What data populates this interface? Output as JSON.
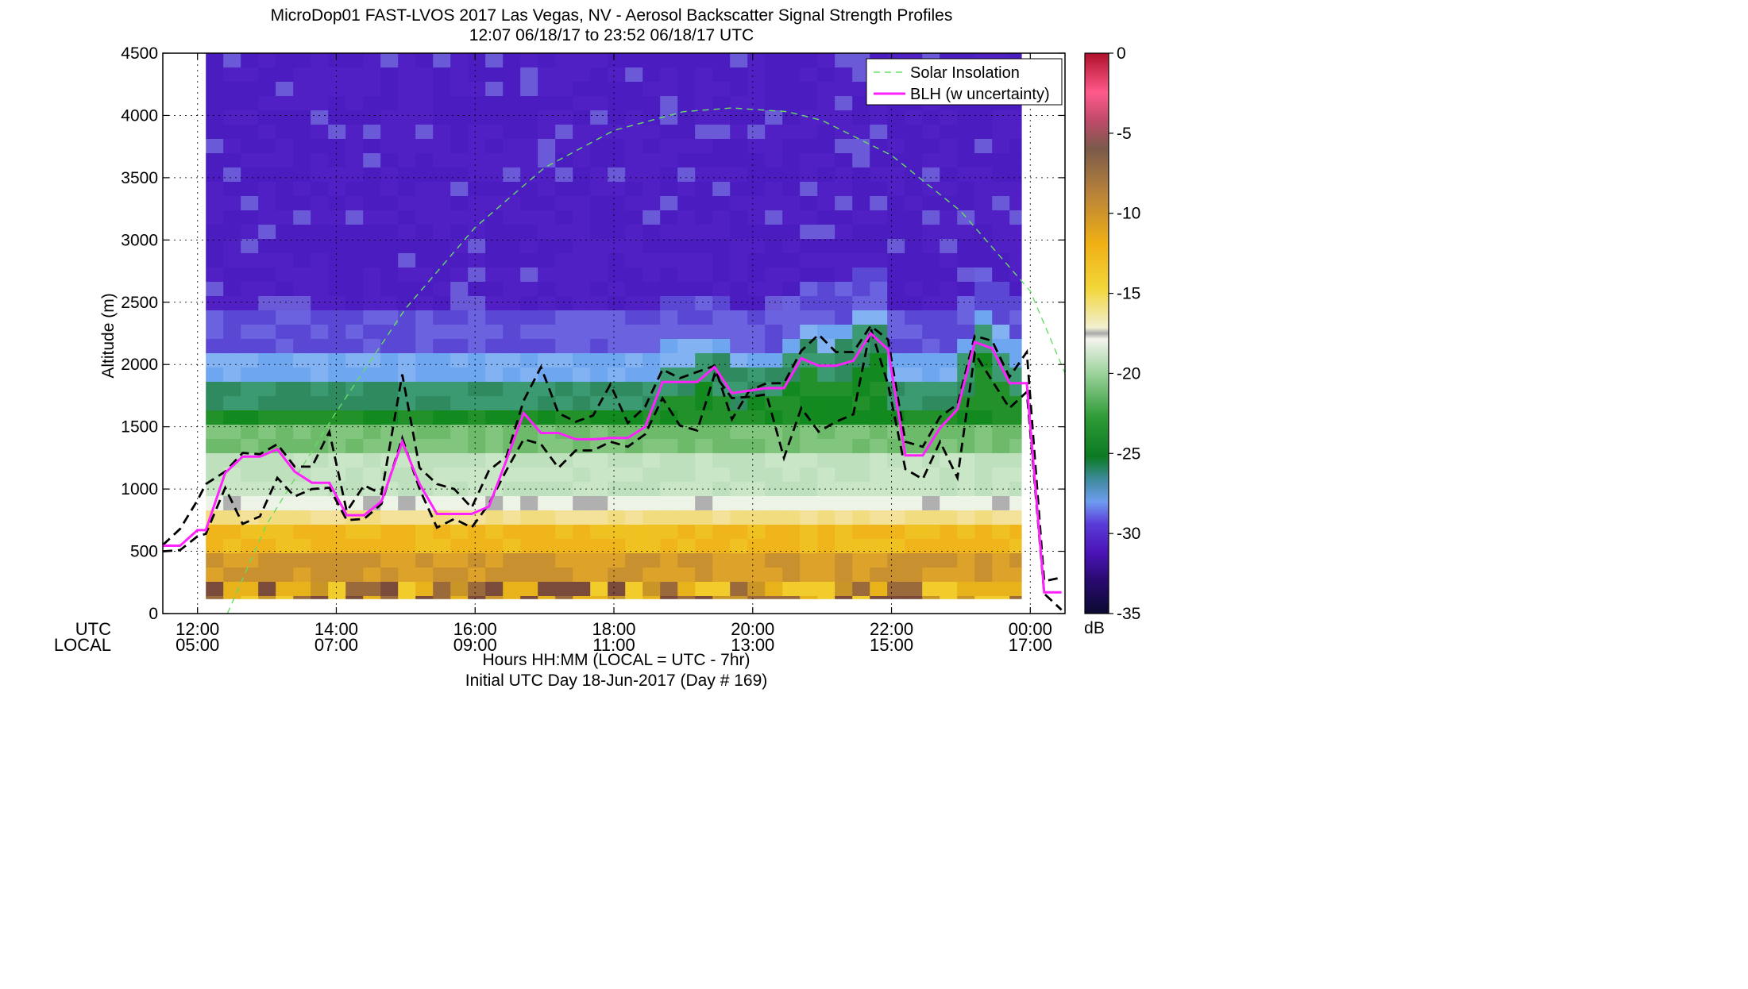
{
  "title": "MicroDop01 FAST-LVOS 2017 Las Vegas, NV - Aerosol Backscatter Signal Strength Profiles",
  "subtitle": "12:07 06/18/17 to 23:52 06/18/17  UTC",
  "ylabel": "Altitude (m)",
  "xlabel": "Hours HH:MM  (LOCAL = UTC - 7hr)",
  "footer": "Initial UTC Day 18-Jun-2017 (Day # 169)",
  "utc_label": "UTC",
  "local_label": "LOCAL",
  "colorbar_unit": "dB",
  "legend": {
    "solar_label": "Solar Insolation",
    "blh_label": "BLH (w uncertainty)"
  },
  "colors": {
    "solar": "#66dd66",
    "blh": "#ff22ff",
    "uncertainty": "#000000"
  },
  "chart_data": {
    "type": "heatmap",
    "title": "MicroDop01 FAST-LVOS 2017 Las Vegas, NV - Aerosol Backscatter Signal Strength Profiles",
    "subtitle": "12:07 06/18/17 to 23:52 06/18/17  UTC",
    "xlabel": "Hours HH:MM  (LOCAL = UTC - 7hr)",
    "ylabel": "Altitude (m)",
    "xlim": [
      11.5,
      24.5
    ],
    "ylim": [
      0,
      4500
    ],
    "yticks": [
      0,
      500,
      1000,
      1500,
      2000,
      2500,
      3000,
      3500,
      4000,
      4500
    ],
    "xticks": [
      {
        "utc": "12:00",
        "local": "05:00",
        "hour": 12
      },
      {
        "utc": "14:00",
        "local": "07:00",
        "hour": 14
      },
      {
        "utc": "16:00",
        "local": "09:00",
        "hour": 16
      },
      {
        "utc": "18:00",
        "local": "11:00",
        "hour": 18
      },
      {
        "utc": "20:00",
        "local": "13:00",
        "hour": 20
      },
      {
        "utc": "22:00",
        "local": "15:00",
        "hour": 22
      },
      {
        "utc": "00:00",
        "local": "17:00",
        "hour": 24
      }
    ],
    "colorbar": {
      "range": [
        -35,
        0
      ],
      "ticks": [
        0,
        -5,
        -10,
        -15,
        -20,
        -25,
        -30,
        -35
      ],
      "label": "dB"
    },
    "data_extent": {
      "x": [
        12.12,
        23.87
      ],
      "y": [
        120,
        4500
      ]
    },
    "series": [
      {
        "name": "Solar Insolation",
        "style": "dashed",
        "x": [
          12.43,
          13.0,
          14.0,
          15.0,
          16.0,
          17.0,
          18.0,
          19.0,
          19.7,
          20.5,
          21.0,
          22.0,
          23.0,
          24.0,
          24.5
        ],
        "y": [
          0,
          720,
          1620,
          2450,
          3100,
          3580,
          3880,
          4030,
          4060,
          4030,
          3960,
          3680,
          3230,
          2590,
          1930
        ]
      },
      {
        "name": "BLH (w uncertainty)",
        "x": [
          11.5,
          11.75,
          12.0,
          12.12,
          12.4,
          12.65,
          12.9,
          13.15,
          13.4,
          13.65,
          13.9,
          14.15,
          14.4,
          14.65,
          14.95,
          15.2,
          15.45,
          15.7,
          15.95,
          16.2,
          16.45,
          16.7,
          16.95,
          17.2,
          17.45,
          17.7,
          17.95,
          18.2,
          18.45,
          18.7,
          18.95,
          19.2,
          19.45,
          19.7,
          19.95,
          20.2,
          20.45,
          20.7,
          20.95,
          21.2,
          21.45,
          21.7,
          21.95,
          22.2,
          22.45,
          22.7,
          22.95,
          23.2,
          23.45,
          23.7,
          23.95,
          24.2,
          24.45
        ],
        "y": [
          545,
          545,
          670,
          670,
          1130,
          1260,
          1260,
          1320,
          1140,
          1050,
          1050,
          790,
          790,
          900,
          1380,
          1040,
          800,
          800,
          800,
          860,
          1230,
          1610,
          1450,
          1450,
          1400,
          1400,
          1410,
          1410,
          1500,
          1860,
          1860,
          1860,
          1980,
          1770,
          1790,
          1810,
          1810,
          2050,
          1990,
          1990,
          2030,
          2250,
          2120,
          1270,
          1270,
          1490,
          1640,
          2180,
          2130,
          1850,
          1850,
          170,
          170
        ]
      },
      {
        "name": "BLH upper bound",
        "style": "dashed",
        "x": [
          11.5,
          11.75,
          12.0,
          12.12,
          12.4,
          12.65,
          12.9,
          13.15,
          13.4,
          13.65,
          13.9,
          14.15,
          14.4,
          14.65,
          14.95,
          15.2,
          15.45,
          15.7,
          15.95,
          16.2,
          16.45,
          16.7,
          16.95,
          17.2,
          17.45,
          17.7,
          17.95,
          18.2,
          18.45,
          18.7,
          18.95,
          19.2,
          19.45,
          19.7,
          19.95,
          20.2,
          20.45,
          20.7,
          20.95,
          21.2,
          21.45,
          21.7,
          21.95,
          22.2,
          22.45,
          22.7,
          22.95,
          23.2,
          23.45,
          23.7,
          23.95,
          24.2,
          24.45
        ],
        "y": [
          550,
          680,
          910,
          1040,
          1140,
          1290,
          1280,
          1360,
          1180,
          1180,
          1460,
          820,
          1030,
          960,
          1920,
          1170,
          1040,
          1000,
          850,
          1150,
          1260,
          1710,
          1980,
          1610,
          1540,
          1590,
          1840,
          1530,
          1660,
          1960,
          1890,
          1940,
          1990,
          1560,
          1790,
          1850,
          1850,
          2110,
          2240,
          2100,
          2100,
          2310,
          2200,
          1380,
          1340,
          1580,
          1680,
          2230,
          2190,
          1900,
          2100,
          260,
          290
        ]
      },
      {
        "name": "BLH lower bound",
        "style": "dashed",
        "x": [
          11.5,
          11.75,
          12.0,
          12.12,
          12.4,
          12.65,
          12.9,
          13.15,
          13.4,
          13.65,
          13.9,
          14.15,
          14.4,
          14.65,
          14.95,
          15.2,
          15.45,
          15.7,
          15.95,
          16.2,
          16.45,
          16.7,
          16.95,
          17.2,
          17.45,
          17.7,
          17.95,
          18.2,
          18.45,
          18.7,
          18.95,
          19.2,
          19.45,
          19.7,
          19.95,
          20.2,
          20.45,
          20.7,
          20.95,
          21.2,
          21.45,
          21.7,
          21.95,
          22.2,
          22.45,
          22.7,
          22.95,
          23.2,
          23.45,
          23.7,
          23.95,
          24.2,
          24.45
        ],
        "y": [
          500,
          510,
          620,
          640,
          1010,
          720,
          780,
          1090,
          940,
          1000,
          1010,
          750,
          760,
          880,
          1410,
          1000,
          690,
          760,
          690,
          880,
          1150,
          1400,
          1360,
          1170,
          1310,
          1310,
          1380,
          1340,
          1440,
          1730,
          1510,
          1470,
          1920,
          1730,
          1740,
          1760,
          1250,
          1650,
          1460,
          1540,
          1600,
          2290,
          1840,
          1160,
          1080,
          1380,
          1090,
          2090,
          1870,
          1650,
          1780,
          160,
          30
        ]
      }
    ]
  }
}
